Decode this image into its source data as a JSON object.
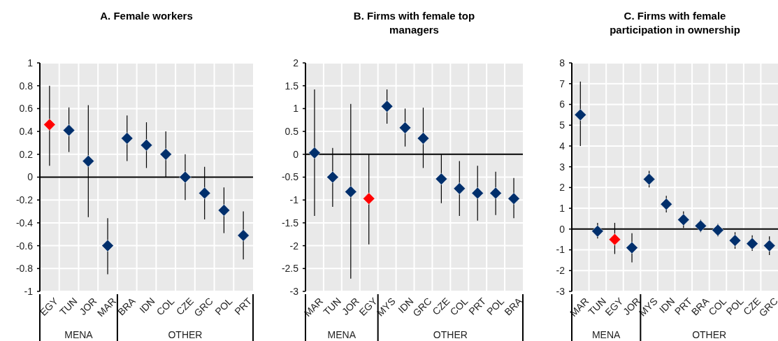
{
  "chart_data": [
    {
      "type": "scatter",
      "title": "A. Female workers",
      "categories": [
        "EGY",
        "TUN",
        "JOR",
        "MAR",
        "BRA",
        "IDN",
        "COL",
        "CZE",
        "GRC",
        "POL",
        "PRT"
      ],
      "values": [
        0.46,
        0.41,
        0.14,
        -0.6,
        0.34,
        0.28,
        0.2,
        0,
        -0.14,
        -0.29,
        -0.51
      ],
      "errors": [
        [
          0.1,
          0.8
        ],
        [
          0.22,
          0.61
        ],
        [
          -0.35,
          0.63
        ],
        [
          -0.85,
          -0.36
        ],
        [
          0.14,
          0.54
        ],
        [
          0.08,
          0.48
        ],
        [
          0,
          0.4
        ],
        [
          -0.2,
          0.2
        ],
        [
          -0.37,
          0.09
        ],
        [
          -0.49,
          -0.09
        ],
        [
          -0.72,
          -0.3
        ]
      ],
      "colors": [
        "#ff0000",
        "#002f6c",
        "#002f6c",
        "#002f6c",
        "#002f6c",
        "#002f6c",
        "#002f6c",
        "#002f6c",
        "#002f6c",
        "#002f6c",
        "#002f6c"
      ],
      "ylim": [
        -1,
        1
      ],
      "yticks": [
        -1,
        -0.8,
        -0.6,
        -0.4,
        -0.2,
        0,
        0.2,
        0.4,
        0.6,
        0.8,
        1
      ],
      "grid": true,
      "marker": "diamond",
      "annotations": [
        "MENA",
        "OTHER"
      ]
    },
    {
      "type": "scatter",
      "title": "B. Firms with female top managers",
      "categories": [
        "MAR",
        "TUN",
        "JOR",
        "EGY",
        "MYS",
        "IDN",
        "GRC",
        "CZE",
        "COL",
        "PRT",
        "POL",
        "BRA"
      ],
      "values": [
        0.03,
        -0.5,
        -0.82,
        -0.97,
        1.05,
        0.58,
        0.35,
        -0.54,
        -0.75,
        -0.85,
        -0.85,
        -0.97
      ],
      "errors": [
        [
          -1.35,
          1.42
        ],
        [
          -1.15,
          0.14
        ],
        [
          -2.72,
          1.1
        ],
        [
          -1.97,
          0
        ],
        [
          0.67,
          1.42
        ],
        [
          0.17,
          1.0
        ],
        [
          -0.3,
          1.02
        ],
        [
          -1.07,
          0
        ],
        [
          -1.35,
          -0.15
        ],
        [
          -1.45,
          -0.25
        ],
        [
          -1.33,
          -0.38
        ],
        [
          -1.4,
          -0.52
        ]
      ],
      "colors": [
        "#002f6c",
        "#002f6c",
        "#002f6c",
        "#ff0000",
        "#002f6c",
        "#002f6c",
        "#002f6c",
        "#002f6c",
        "#002f6c",
        "#002f6c",
        "#002f6c",
        "#002f6c"
      ],
      "ylim": [
        -3,
        2
      ],
      "yticks": [
        -3,
        -2.5,
        -2,
        -1.5,
        -1,
        -0.5,
        0,
        0.5,
        1,
        1.5,
        2
      ],
      "grid": true,
      "marker": "diamond",
      "annotations": [
        "MENA",
        "OTHER"
      ]
    },
    {
      "type": "scatter",
      "title": "C. Firms with female participation in ownership",
      "categories": [
        "MAR",
        "TUN",
        "EGY",
        "JOR",
        "MYS",
        "IDN",
        "PRT",
        "BRA",
        "COL",
        "POL",
        "CZE",
        "GRC"
      ],
      "values": [
        5.5,
        -0.1,
        -0.5,
        -0.9,
        2.4,
        1.2,
        0.45,
        0.15,
        -0.05,
        -0.55,
        -0.7,
        -0.8
      ],
      "errors": [
        [
          4,
          7.1
        ],
        [
          -0.45,
          0.3
        ],
        [
          -1.2,
          0.3
        ],
        [
          -1.6,
          -0.2
        ],
        [
          2.0,
          2.8
        ],
        [
          0.8,
          1.6
        ],
        [
          0.05,
          0.85
        ],
        [
          -0.15,
          0.45
        ],
        [
          -0.35,
          0.25
        ],
        [
          -0.95,
          -0.15
        ],
        [
          -1.05,
          -0.3
        ],
        [
          -1.25,
          -0.35
        ]
      ],
      "colors": [
        "#002f6c",
        "#002f6c",
        "#ff0000",
        "#002f6c",
        "#002f6c",
        "#002f6c",
        "#002f6c",
        "#002f6c",
        "#002f6c",
        "#002f6c",
        "#002f6c",
        "#002f6c"
      ],
      "ylim": [
        -3,
        8
      ],
      "yticks": [
        -3,
        -2,
        -1,
        0,
        1,
        2,
        3,
        4,
        5,
        6,
        7,
        8
      ],
      "grid": true,
      "marker": "diamond",
      "annotations": [
        "MENA",
        "OTHER"
      ]
    }
  ]
}
